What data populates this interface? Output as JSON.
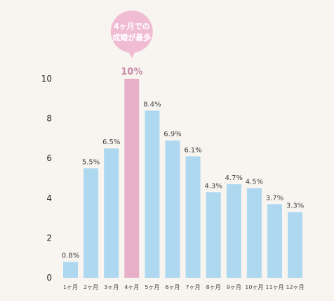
{
  "chart_data": {
    "type": "bar",
    "categories": [
      "1ヶ月",
      "2ヶ月",
      "3ヶ月",
      "4ヶ月",
      "5ヶ月",
      "6ヶ月",
      "7ヶ月",
      "8ヶ月",
      "9ヶ月",
      "10ヶ月",
      "11ヶ月",
      "12ヶ月"
    ],
    "values": [
      0.8,
      5.5,
      6.5,
      10,
      8.4,
      6.9,
      6.1,
      4.3,
      4.7,
      4.5,
      3.7,
      3.3
    ],
    "value_labels": [
      "0.8%",
      "5.5%",
      "6.5%",
      "10%",
      "8.4%",
      "6.9%",
      "6.1%",
      "4.3%",
      "4.7%",
      "4.5%",
      "3.7%",
      "3.3%"
    ],
    "yticks": [
      0,
      2,
      4,
      6,
      8,
      10
    ],
    "ylim": [
      0,
      10
    ],
    "highlight_index": 3,
    "grid": false,
    "colors": {
      "bar": "#add8f0",
      "highlight": "#e8b0c8",
      "bubble": "#f0bcd3",
      "highlight_text": "#c98aa8"
    },
    "annotation": {
      "line1": "4ヶ月での",
      "line2": "成婚が最多"
    }
  }
}
